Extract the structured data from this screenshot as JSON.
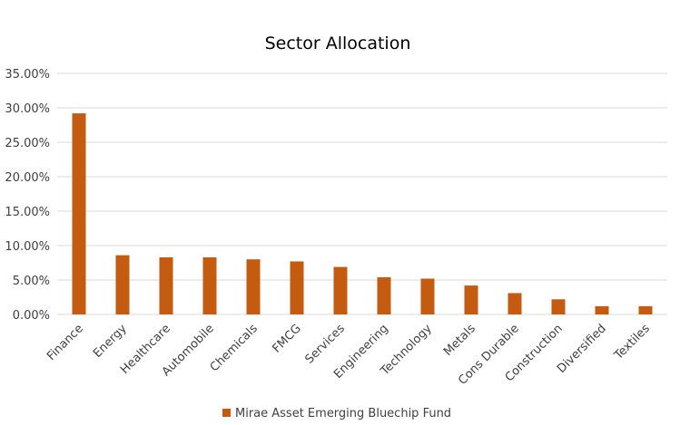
{
  "chart_data": {
    "type": "bar",
    "title": "Sector Allocation",
    "xlabel": "",
    "ylabel": "",
    "ylim": [
      0,
      0.35
    ],
    "y_ticks": [
      "0.00%",
      "5.00%",
      "10.00%",
      "15.00%",
      "20.00%",
      "25.00%",
      "30.00%",
      "35.00%"
    ],
    "categories": [
      "Finance",
      "Energy",
      "Healthcare",
      "Automobile",
      "Chemicals",
      "FMCG",
      "Services",
      "Engineering",
      "Technology",
      "Metals",
      "Cons Durable",
      "Construction",
      "Diversified",
      "Textiles"
    ],
    "series": [
      {
        "name": "Mirae Asset Emerging Bluechip Fund",
        "color": "#c55a11",
        "values": [
          0.292,
          0.086,
          0.083,
          0.083,
          0.08,
          0.077,
          0.069,
          0.054,
          0.052,
          0.042,
          0.031,
          0.022,
          0.012,
          0.012
        ]
      }
    ],
    "grid": true,
    "legend_position": "bottom"
  }
}
